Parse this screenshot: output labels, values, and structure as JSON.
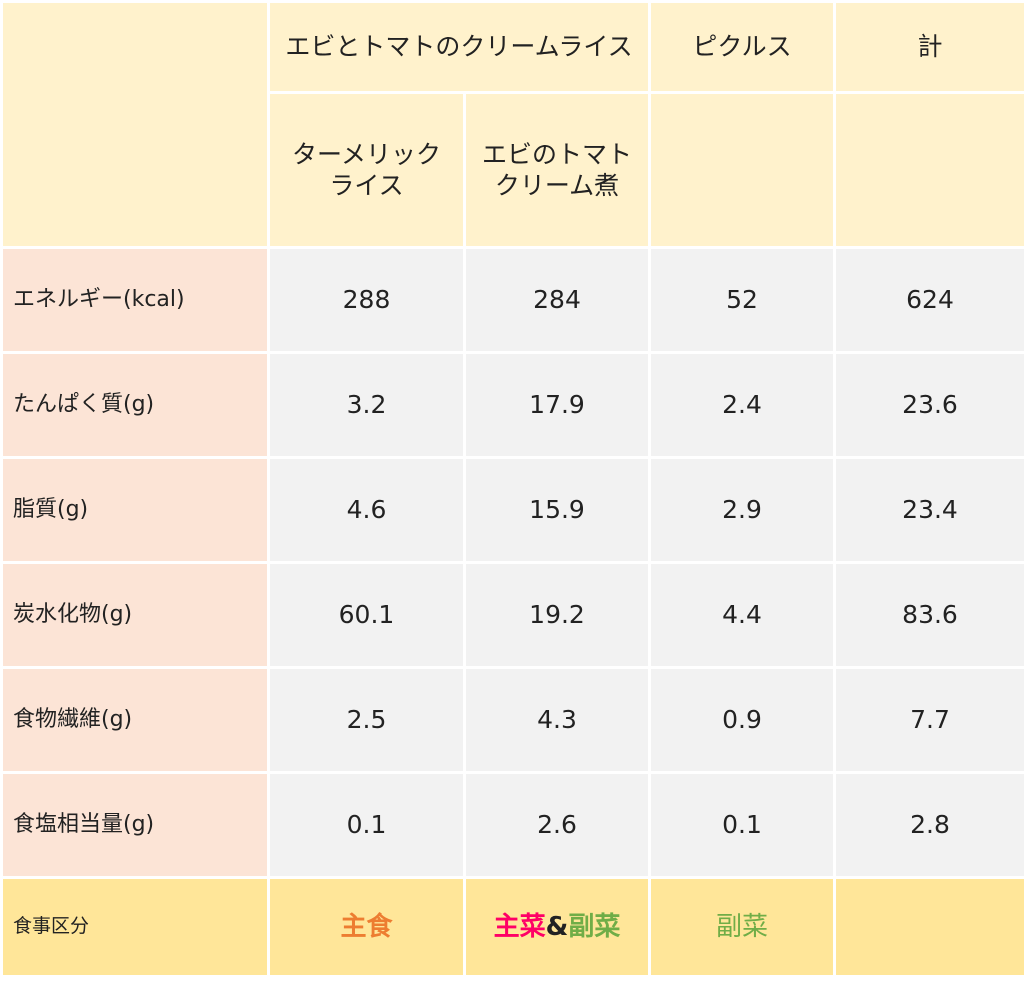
{
  "header": {
    "dish_main": "エビとトマトのクリームライス",
    "dish_pickles": "ピクルス",
    "total": "計",
    "sub1_line1": "ターメリック",
    "sub1_line2": "ライス",
    "sub2_line1": "エビのトマト",
    "sub2_line2": "クリーム煮"
  },
  "rows": [
    {
      "label": "エネルギー(kcal)",
      "values": [
        "288",
        "284",
        "52",
        "624"
      ]
    },
    {
      "label": "たんぱく質(g)",
      "values": [
        "3.2",
        "17.9",
        "2.4",
        "23.6"
      ]
    },
    {
      "label": "脂質(g)",
      "values": [
        "4.6",
        "15.9",
        "2.9",
        "23.4"
      ]
    },
    {
      "label": "炭水化物(g)",
      "values": [
        "60.1",
        "19.2",
        "4.4",
        "83.6"
      ]
    },
    {
      "label": "食物繊維(g)",
      "values": [
        "2.5",
        "4.3",
        "0.9",
        "7.7"
      ]
    },
    {
      "label": "食塩相当量(g)",
      "values": [
        "0.1",
        "2.6",
        "0.1",
        "2.8"
      ]
    }
  ],
  "footer": {
    "label": "食事区分",
    "cat1": "主食",
    "cat2_a": "主菜",
    "cat2_amp": "&",
    "cat2_b": "副菜",
    "cat3": "副菜"
  },
  "colors": {
    "header_bg": "#fff2cc",
    "label_bg": "#fce4d6",
    "value_bg": "#f2f2f2",
    "footer_bg": "#ffe699",
    "main_dish": "#ed7d31",
    "main_course": "#ff0066",
    "side_dish": "#70ad47"
  }
}
